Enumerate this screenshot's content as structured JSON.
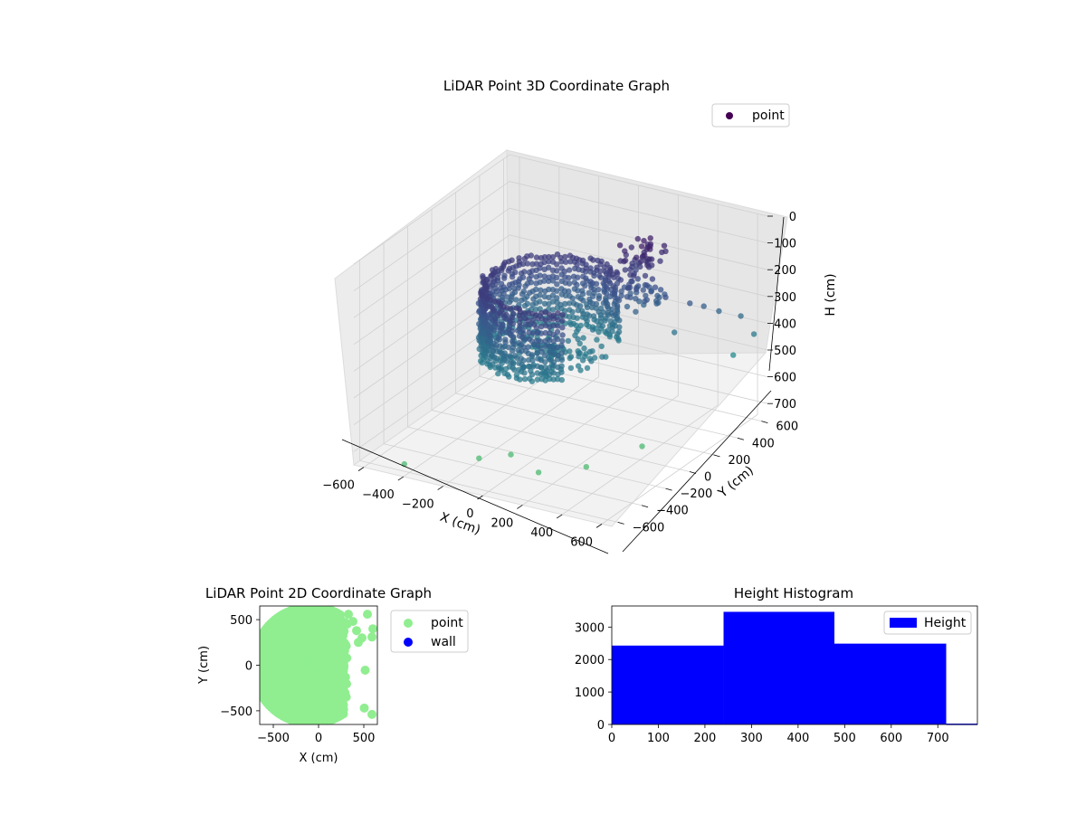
{
  "chart_data": [
    {
      "type": "scatter",
      "projection": "3d",
      "title": "LiDAR Point 3D Coordinate Graph",
      "xlabel": "X (cm)",
      "ylabel": "Y (cm)",
      "zlabel": "H (cm)",
      "x_ticks": [
        "−600",
        "−400",
        "−200",
        "0",
        "200",
        "400",
        "600"
      ],
      "y_ticks": [
        "−600",
        "−400",
        "−200",
        "0",
        "200",
        "400",
        "600"
      ],
      "z_ticks": [
        "0",
        "100",
        "200",
        "300",
        "400",
        "500",
        "600",
        "700"
      ],
      "xlim": [
        -650,
        650
      ],
      "ylim": [
        -650,
        650
      ],
      "zlim": [
        0,
        750
      ],
      "z_inverted": true,
      "colormap": "viridis",
      "grid": true,
      "legend": {
        "location": "upper-right",
        "entries": [
          "point"
        ]
      },
      "series": [
        {
          "name": "point",
          "color": "#440154",
          "description_points": {
            "ring_radius_cm": 300,
            "ring_height_range_cm": [
              200,
              450
            ],
            "outliers": [
              {
                "x": 320,
                "y": 420,
                "z": 420
              },
              {
                "x": 520,
                "y": 580,
                "z": 520
              },
              {
                "x": 600,
                "y": 620,
                "z": 440
              },
              {
                "x": 540,
                "y": 610,
                "z": 380
              },
              {
                "x": 460,
                "y": 560,
                "z": 360
              },
              {
                "x": 420,
                "y": 500,
                "z": 330
              },
              {
                "x": 380,
                "y": 450,
                "z": 310
              },
              {
                "x": 300,
                "y": 380,
                "z": 280
              },
              {
                "x": -200,
                "y": -350,
                "z": 740
              },
              {
                "x": -100,
                "y": -250,
                "z": 740
              },
              {
                "x": 100,
                "y": -350,
                "z": 740
              },
              {
                "x": 250,
                "y": -200,
                "z": 740
              },
              {
                "x": 350,
                "y": 100,
                "z": 740
              },
              {
                "x": -450,
                "y": -560,
                "z": 740
              }
            ]
          }
        }
      ]
    },
    {
      "type": "scatter",
      "title": "LiDAR Point 2D Coordinate Graph",
      "xlabel": "X (cm)",
      "ylabel": "Y (cm)",
      "x_ticks": [
        "−500",
        "0",
        "500"
      ],
      "y_ticks": [
        "−500",
        "0",
        "500"
      ],
      "xlim": [
        -650,
        650
      ],
      "ylim": [
        -650,
        650
      ],
      "legend": {
        "location": "outside-right",
        "entries": [
          "point",
          "wall"
        ]
      },
      "series": [
        {
          "name": "point",
          "color": "#90ee90",
          "points": [
            {
              "x": 540,
              "y": 560
            },
            {
              "x": 600,
              "y": 400
            },
            {
              "x": 420,
              "y": 380
            },
            {
              "x": 480,
              "y": 300
            },
            {
              "x": 590,
              "y": 310
            },
            {
              "x": 440,
              "y": 250
            },
            {
              "x": 515,
              "y": -55
            },
            {
              "x": 505,
              "y": -470
            },
            {
              "x": 590,
              "y": -540
            },
            {
              "x": 330,
              "y": 560
            },
            {
              "x": 380,
              "y": 480
            }
          ]
        },
        {
          "name": "wall",
          "color": "#0000ff",
          "points": []
        }
      ]
    },
    {
      "type": "bar",
      "subtype": "histogram",
      "title": "Height Histogram",
      "xlabel": "",
      "ylabel": "",
      "bins": [
        {
          "start": 0,
          "end": 240,
          "count": 2430
        },
        {
          "start": 240,
          "end": 478,
          "count": 3470
        },
        {
          "start": 478,
          "end": 718,
          "count": 2490
        },
        {
          "start": 718,
          "end": 785,
          "count": 25
        }
      ],
      "xlim": [
        0,
        785
      ],
      "ylim": [
        0,
        3650
      ],
      "x_ticks": [
        0,
        100,
        200,
        300,
        400,
        500,
        600,
        700
      ],
      "y_ticks": [
        0,
        1000,
        2000,
        3000
      ],
      "legend": {
        "location": "upper-right",
        "entries": [
          "Height"
        ]
      },
      "series": [
        {
          "name": "Height",
          "color": "#0000ff"
        }
      ]
    }
  ]
}
